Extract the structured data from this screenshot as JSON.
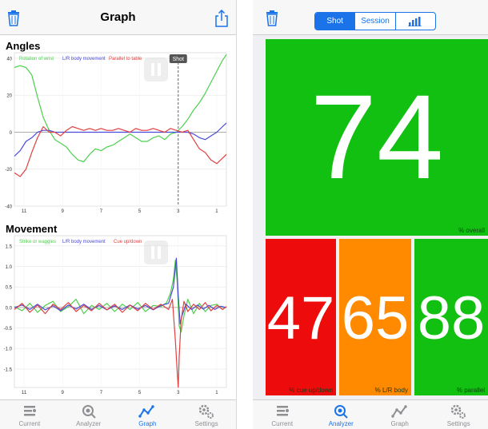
{
  "left": {
    "nav": {
      "title": "Graph"
    },
    "angles": {
      "title": "Angles",
      "chart_data": {
        "type": "line",
        "yticks": [
          40,
          20,
          0,
          -20,
          -40
        ],
        "xticks": [
          "11",
          "9",
          "7",
          "5",
          "3",
          "1"
        ],
        "xlim": [
          11.5,
          0.5
        ],
        "ylim": [
          -40,
          43
        ],
        "shot_marker": {
          "x": 3,
          "label": "Shot"
        },
        "series": [
          {
            "name": "Rotation of wrist",
            "color": "#4cd04c",
            "x": [
              11.5,
              11.2,
              10.9,
              10.6,
              10.3,
              10,
              9.7,
              9.4,
              9.1,
              8.8,
              8.5,
              8.2,
              7.9,
              7.6,
              7.3,
              7,
              6.7,
              6.4,
              6.1,
              5.8,
              5.5,
              5.2,
              4.9,
              4.6,
              4.3,
              4,
              3.7,
              3.4,
              3.1,
              2.8,
              2.5,
              2.2,
              1.9,
              1.6,
              1.3,
              1,
              0.7,
              0.5
            ],
            "y": [
              35,
              36,
              35,
              31,
              19,
              8,
              1,
              -4,
              -6,
              -8,
              -12,
              -15,
              -16,
              -12,
              -9,
              -10,
              -8,
              -7,
              -5,
              -3,
              -1,
              -3,
              -5,
              -5,
              -3,
              -2,
              -4,
              -1,
              0,
              3,
              7,
              12,
              16,
              21,
              27,
              33,
              39,
              42
            ]
          },
          {
            "name": "L/R body movement",
            "color": "#4a4adc",
            "x": [
              11.5,
              11.2,
              10.9,
              10.6,
              10.3,
              10,
              9.7,
              9.4,
              9.1,
              8.8,
              8.5,
              8.2,
              7.9,
              7.6,
              7.3,
              7,
              6.7,
              6.4,
              6.1,
              5.8,
              5.5,
              5.2,
              4.9,
              4.6,
              4.3,
              4,
              3.7,
              3.4,
              3.1,
              2.8,
              2.5,
              2.2,
              1.9,
              1.6,
              1.3,
              1,
              0.7,
              0.5
            ],
            "y": [
              -13,
              -10,
              -5,
              -3,
              0,
              1,
              1,
              0,
              0,
              0,
              0,
              0,
              0,
              0,
              0,
              0,
              0,
              0,
              0,
              0,
              0,
              0,
              0,
              0,
              0,
              0,
              0,
              0,
              0,
              0,
              0,
              -1,
              -3,
              -4,
              -2,
              0,
              3,
              5
            ]
          },
          {
            "name": "Parallel to table",
            "color": "#e04040",
            "x": [
              11.5,
              11.2,
              10.9,
              10.6,
              10.3,
              10,
              9.7,
              9.4,
              9.1,
              8.8,
              8.5,
              8.2,
              7.9,
              7.6,
              7.3,
              7,
              6.7,
              6.4,
              6.1,
              5.8,
              5.5,
              5.2,
              4.9,
              4.6,
              4.3,
              4,
              3.7,
              3.4,
              3.1,
              2.8,
              2.5,
              2.2,
              1.9,
              1.6,
              1.3,
              1,
              0.7,
              0.5
            ],
            "y": [
              -22,
              -24,
              -20,
              -11,
              -3,
              3,
              0,
              0,
              -2,
              1,
              3,
              2,
              1,
              2,
              1,
              2,
              1,
              1,
              2,
              1,
              0,
              2,
              1,
              1,
              2,
              1,
              0,
              2,
              1,
              0,
              1,
              -4,
              -9,
              -11,
              -15,
              -17,
              -14,
              -12
            ]
          }
        ]
      }
    },
    "movement": {
      "title": "Movement",
      "chart_data": {
        "type": "line",
        "yticks": [
          "1.5",
          "1.0",
          "0.5",
          "0.0",
          "-0.5",
          "-1.0",
          "-1.5"
        ],
        "ytick_values": [
          1.5,
          1,
          0.5,
          0,
          -0.5,
          -1,
          -1.5
        ],
        "xticks": [
          "11",
          "9",
          "7",
          "5",
          "3",
          "1"
        ],
        "xlim": [
          11.5,
          0.5
        ],
        "ylim": [
          -1.95,
          1.75
        ],
        "series": [
          {
            "name": "Strike or waggles",
            "color": "#4cd04c",
            "x": [
              11.5,
              11.1,
              10.7,
              10.3,
              9.9,
              9.5,
              9.1,
              8.7,
              8.3,
              7.9,
              7.5,
              7.1,
              6.7,
              6.3,
              5.9,
              5.5,
              5.1,
              4.7,
              4.3,
              3.9,
              3.6,
              3.4,
              3.25,
              3.15,
              3.05,
              3,
              2.95,
              2.85,
              2.7,
              2.5,
              2.2,
              1.9,
              1.6,
              1.3,
              1,
              0.7,
              0.5
            ],
            "y": [
              0.02,
              -0.08,
              0.1,
              -0.12,
              0.05,
              0.15,
              -0.1,
              0.02,
              0.2,
              -0.15,
              0.05,
              -0.05,
              0.1,
              -0.1,
              0.08,
              -0.05,
              0.12,
              -0.1,
              0.05,
              0.02,
              0.12,
              0.35,
              0.7,
              1.15,
              0.6,
              0.05,
              -0.45,
              -0.6,
              -0.2,
              0.2,
              -0.15,
              0.1,
              -0.1,
              0.05,
              0.08,
              -0.05,
              0.02
            ]
          },
          {
            "name": "L/R body movement",
            "color": "#4a4adc",
            "x": [
              11.5,
              11.1,
              10.7,
              10.3,
              9.9,
              9.5,
              9.1,
              8.7,
              8.3,
              7.9,
              7.5,
              7.1,
              6.7,
              6.3,
              5.9,
              5.5,
              5.1,
              4.7,
              4.3,
              3.9,
              3.5,
              3.25,
              3.1,
              3,
              2.9,
              2.8,
              2.6,
              2.3,
              2,
              1.7,
              1.4,
              1.1,
              0.8,
              0.5
            ],
            "y": [
              0,
              0.06,
              -0.05,
              0.08,
              -0.06,
              0.04,
              -0.08,
              0.06,
              -0.04,
              0.08,
              -0.05,
              0.05,
              -0.06,
              0.04,
              -0.05,
              0.06,
              -0.04,
              0.05,
              -0.06,
              0.05,
              0.1,
              0.5,
              1.2,
              0.3,
              -0.4,
              -0.2,
              0.08,
              -0.05,
              0.06,
              -0.04,
              0.05,
              -0.05,
              0.03,
              0
            ]
          },
          {
            "name": "Cue up/down",
            "color": "#e04040",
            "x": [
              11.5,
              11.1,
              10.7,
              10.3,
              9.9,
              9.5,
              9.1,
              8.7,
              8.3,
              7.9,
              7.5,
              7.1,
              6.7,
              6.3,
              5.9,
              5.5,
              5.1,
              4.7,
              4.3,
              3.9,
              3.5,
              3.3,
              3.15,
              3.05,
              3,
              2.95,
              2.85,
              2.7,
              2.5,
              2.2,
              1.9,
              1.6,
              1.3,
              1,
              0.7,
              0.5
            ],
            "y": [
              -0.05,
              0.1,
              -0.12,
              0.06,
              -0.15,
              0.08,
              -0.05,
              0.12,
              -0.1,
              0.05,
              -0.08,
              0.1,
              -0.06,
              0.08,
              -0.12,
              0.06,
              -0.08,
              0.1,
              -0.05,
              0.08,
              -0.05,
              0.2,
              -0.8,
              -1.6,
              -1.95,
              -1.2,
              -0.3,
              0.15,
              -0.1,
              0.08,
              -0.05,
              0.12,
              -0.08,
              0.05,
              -0.05,
              0.02
            ]
          }
        ]
      }
    },
    "tabs": [
      {
        "label": "Current",
        "icon": "current-icon"
      },
      {
        "label": "Analyzer",
        "icon": "analyzer-icon"
      },
      {
        "label": "Graph",
        "icon": "graph-icon",
        "active": true
      },
      {
        "label": "Settings",
        "icon": "settings-icon"
      }
    ]
  },
  "right": {
    "segments": [
      {
        "label": "Shot",
        "active": true
      },
      {
        "label": "Session"
      },
      {
        "label": "",
        "icon": "bar-chart-icon"
      }
    ],
    "overall": {
      "value": 74,
      "caption": "% overall",
      "color": "#11c011"
    },
    "scores": [
      {
        "value": 47,
        "caption": "% cue up/down",
        "color": "#ee0b0b"
      },
      {
        "value": 65,
        "caption": "% L/R body",
        "color": "#ff8a00"
      },
      {
        "value": 88,
        "caption": "% parallel",
        "color": "#11c011"
      }
    ],
    "tabs": [
      {
        "label": "Current",
        "icon": "current-icon"
      },
      {
        "label": "Analyzer",
        "icon": "analyzer-icon",
        "active": true
      },
      {
        "label": "Graph",
        "icon": "graph-icon"
      },
      {
        "label": "Settings",
        "icon": "settings-icon"
      }
    ]
  }
}
